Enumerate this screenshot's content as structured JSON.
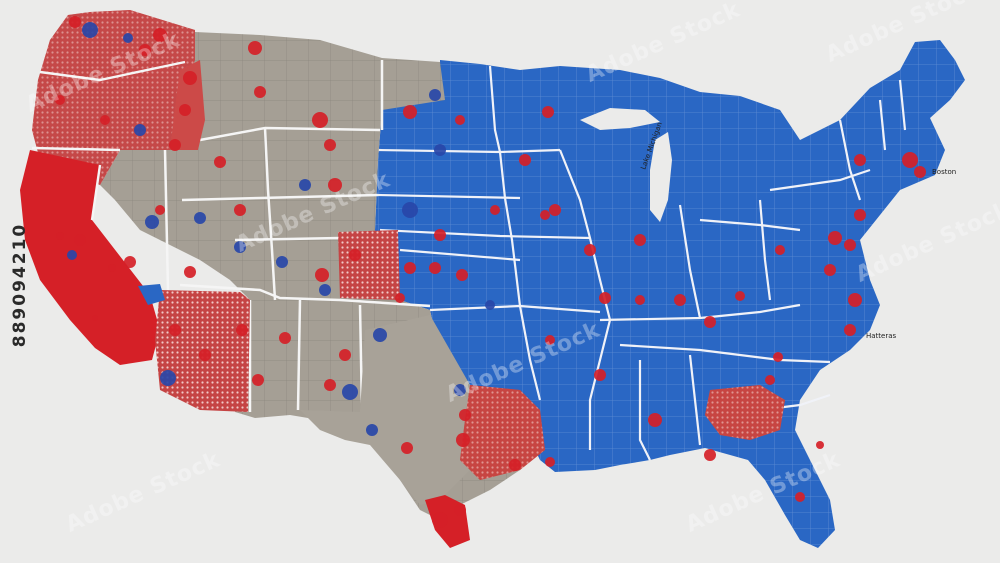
{
  "image_id_text": "889094210",
  "watermark": "Adobe Stock",
  "map_labels": {
    "great_lakes_label": "Lake Michigan",
    "northeast_label": "Boston",
    "carolina_label": "Hatteras"
  },
  "colors": {
    "background": "#ebebea",
    "red": "#d52027",
    "red_light": "#bf5a58",
    "blue": "#2a67c4",
    "blue_dark": "#2847a8",
    "gray": "#a49e94",
    "gray_dark": "#8f887e",
    "border": "#f5f5f5"
  }
}
